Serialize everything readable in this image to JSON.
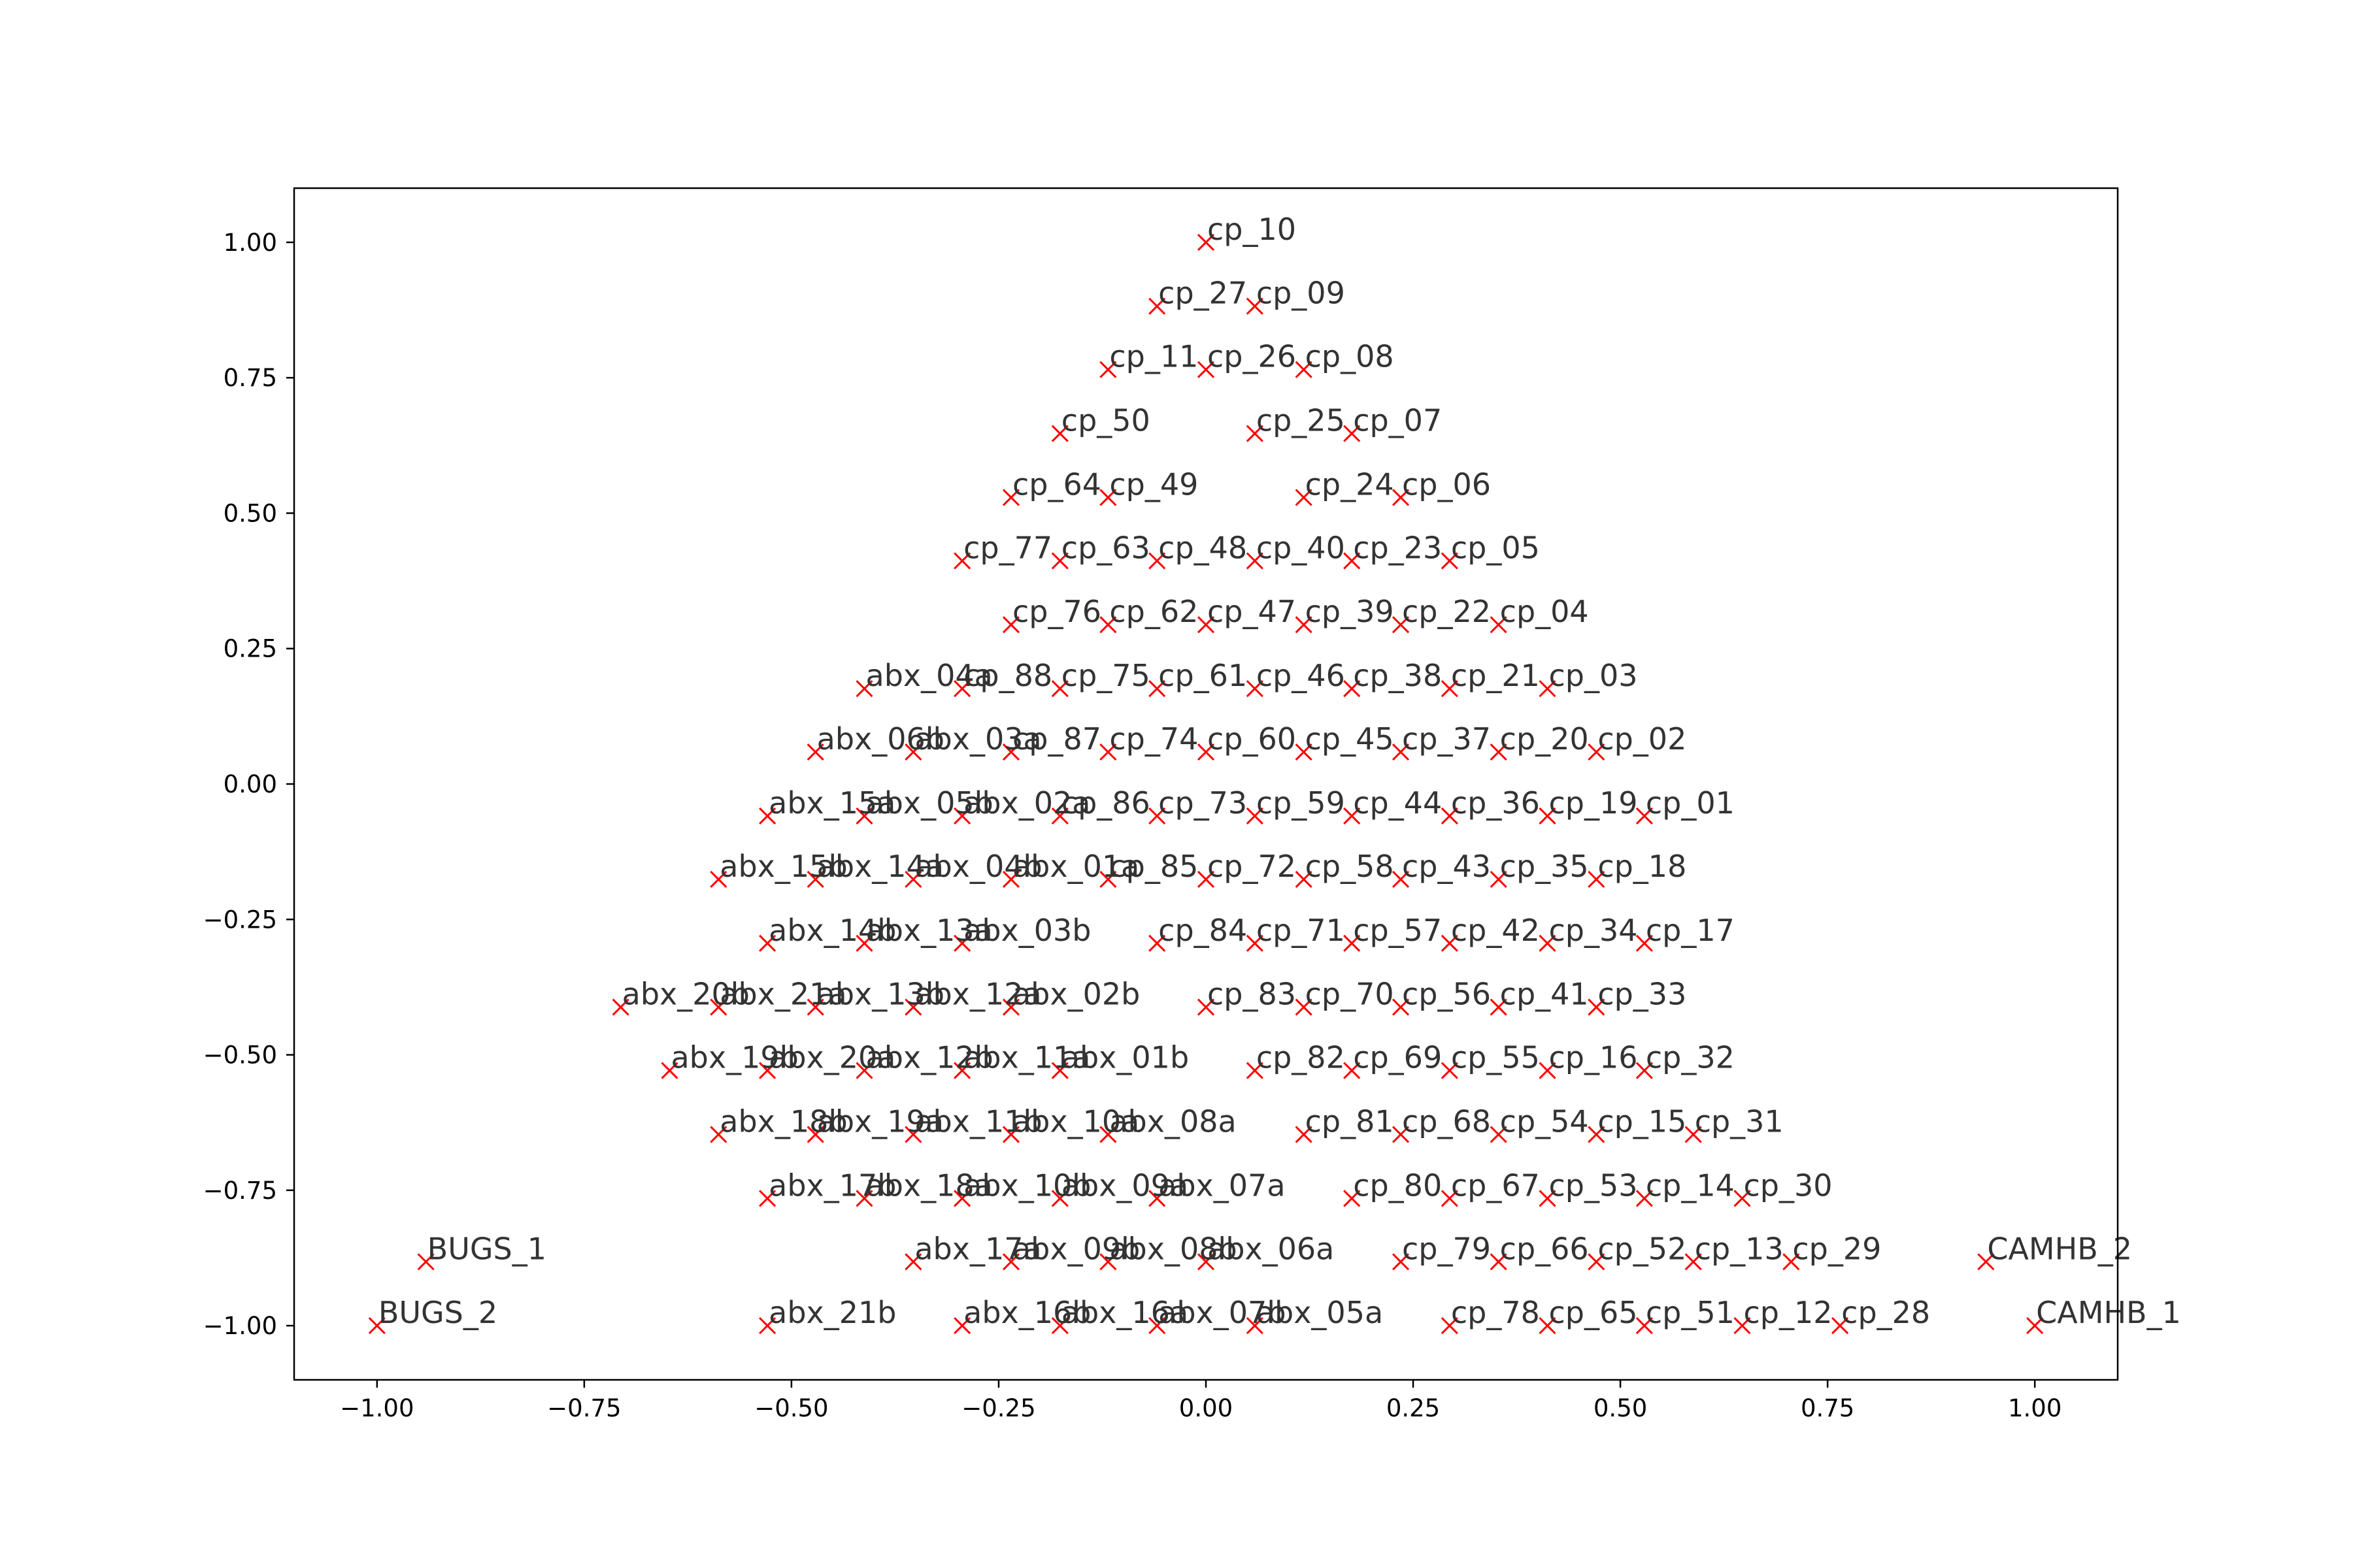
{
  "chart_data": {
    "type": "scatter",
    "title": "",
    "xlabel": "",
    "ylabel": "",
    "xlim": [
      -1.1,
      1.1
    ],
    "ylim": [
      -1.1,
      1.1
    ],
    "xticks": [
      -1.0,
      -0.75,
      -0.5,
      -0.25,
      0.0,
      0.25,
      0.5,
      0.75,
      1.0
    ],
    "yticks": [
      1.0,
      0.75,
      0.5,
      0.25,
      0.0,
      -0.25,
      -0.5,
      -0.75,
      -1.0
    ],
    "xtick_labels": [
      "−1.00",
      "−0.75",
      "−0.50",
      "−0.25",
      "0.00",
      "0.25",
      "0.50",
      "0.75",
      "1.00"
    ],
    "ytick_labels": [
      "1.00",
      "0.75",
      "0.50",
      "0.25",
      "0.00",
      "−0.25",
      "−0.50",
      "−0.75",
      "−1.00"
    ],
    "grid": false,
    "legend": false,
    "marker": "x",
    "marker_color": "#ff0000",
    "label_color": "#333333",
    "points": [
      {
        "label": "cp_10",
        "x": 0.0,
        "y": 1.0
      },
      {
        "label": "cp_27",
        "x": -0.059,
        "y": 0.882
      },
      {
        "label": "cp_09",
        "x": 0.059,
        "y": 0.882
      },
      {
        "label": "cp_11",
        "x": -0.118,
        "y": 0.765
      },
      {
        "label": "cp_26",
        "x": 0.0,
        "y": 0.765
      },
      {
        "label": "cp_08",
        "x": 0.118,
        "y": 0.765
      },
      {
        "label": "cp_50",
        "x": -0.176,
        "y": 0.647
      },
      {
        "label": "cp_25",
        "x": 0.059,
        "y": 0.647
      },
      {
        "label": "cp_07",
        "x": 0.176,
        "y": 0.647
      },
      {
        "label": "cp_64",
        "x": -0.235,
        "y": 0.529
      },
      {
        "label": "cp_49",
        "x": -0.118,
        "y": 0.529
      },
      {
        "label": "cp_24",
        "x": 0.118,
        "y": 0.529
      },
      {
        "label": "cp_06",
        "x": 0.235,
        "y": 0.529
      },
      {
        "label": "cp_77",
        "x": -0.294,
        "y": 0.412
      },
      {
        "label": "cp_63",
        "x": -0.176,
        "y": 0.412
      },
      {
        "label": "cp_48",
        "x": -0.059,
        "y": 0.412
      },
      {
        "label": "cp_40",
        "x": 0.059,
        "y": 0.412
      },
      {
        "label": "cp_23",
        "x": 0.176,
        "y": 0.412
      },
      {
        "label": "cp_05",
        "x": 0.294,
        "y": 0.412
      },
      {
        "label": "cp_76",
        "x": -0.235,
        "y": 0.294
      },
      {
        "label": "cp_62",
        "x": -0.118,
        "y": 0.294
      },
      {
        "label": "cp_47",
        "x": 0.0,
        "y": 0.294
      },
      {
        "label": "cp_39",
        "x": 0.118,
        "y": 0.294
      },
      {
        "label": "cp_22",
        "x": 0.235,
        "y": 0.294
      },
      {
        "label": "cp_04",
        "x": 0.353,
        "y": 0.294
      },
      {
        "label": "abx_04a",
        "x": -0.412,
        "y": 0.176
      },
      {
        "label": "cp_88",
        "x": -0.294,
        "y": 0.176
      },
      {
        "label": "cp_75",
        "x": -0.176,
        "y": 0.176
      },
      {
        "label": "cp_61",
        "x": -0.059,
        "y": 0.176
      },
      {
        "label": "cp_46",
        "x": 0.059,
        "y": 0.176
      },
      {
        "label": "cp_38",
        "x": 0.176,
        "y": 0.176
      },
      {
        "label": "cp_21",
        "x": 0.294,
        "y": 0.176
      },
      {
        "label": "cp_03",
        "x": 0.412,
        "y": 0.176
      },
      {
        "label": "abx_06b",
        "x": -0.471,
        "y": 0.059
      },
      {
        "label": "abx_03a",
        "x": -0.353,
        "y": 0.059
      },
      {
        "label": "cp_87",
        "x": -0.235,
        "y": 0.059
      },
      {
        "label": "cp_74",
        "x": -0.118,
        "y": 0.059
      },
      {
        "label": "cp_60",
        "x": 0.0,
        "y": 0.059
      },
      {
        "label": "cp_45",
        "x": 0.118,
        "y": 0.059
      },
      {
        "label": "cp_37",
        "x": 0.235,
        "y": 0.059
      },
      {
        "label": "cp_20",
        "x": 0.353,
        "y": 0.059
      },
      {
        "label": "cp_02",
        "x": 0.471,
        "y": 0.059
      },
      {
        "label": "abx_15a",
        "x": -0.529,
        "y": -0.059
      },
      {
        "label": "abx_05b",
        "x": -0.412,
        "y": -0.059
      },
      {
        "label": "abx_02a",
        "x": -0.294,
        "y": -0.059
      },
      {
        "label": "cp_86",
        "x": -0.176,
        "y": -0.059
      },
      {
        "label": "cp_73",
        "x": -0.059,
        "y": -0.059
      },
      {
        "label": "cp_59",
        "x": 0.059,
        "y": -0.059
      },
      {
        "label": "cp_44",
        "x": 0.176,
        "y": -0.059
      },
      {
        "label": "cp_36",
        "x": 0.294,
        "y": -0.059
      },
      {
        "label": "cp_19",
        "x": 0.412,
        "y": -0.059
      },
      {
        "label": "cp_01",
        "x": 0.529,
        "y": -0.059
      },
      {
        "label": "abx_15b",
        "x": -0.588,
        "y": -0.176
      },
      {
        "label": "abx_14a",
        "x": -0.471,
        "y": -0.176
      },
      {
        "label": "abx_04b",
        "x": -0.353,
        "y": -0.176
      },
      {
        "label": "abx_01a",
        "x": -0.235,
        "y": -0.176
      },
      {
        "label": "cp_85",
        "x": -0.118,
        "y": -0.176
      },
      {
        "label": "cp_72",
        "x": 0.0,
        "y": -0.176
      },
      {
        "label": "cp_58",
        "x": 0.118,
        "y": -0.176
      },
      {
        "label": "cp_43",
        "x": 0.235,
        "y": -0.176
      },
      {
        "label": "cp_35",
        "x": 0.353,
        "y": -0.176
      },
      {
        "label": "cp_18",
        "x": 0.471,
        "y": -0.176
      },
      {
        "label": "abx_14b",
        "x": -0.529,
        "y": -0.294
      },
      {
        "label": "abx_13a",
        "x": -0.412,
        "y": -0.294
      },
      {
        "label": "abx_03b",
        "x": -0.294,
        "y": -0.294
      },
      {
        "label": "cp_84",
        "x": -0.059,
        "y": -0.294
      },
      {
        "label": "cp_71",
        "x": 0.059,
        "y": -0.294
      },
      {
        "label": "cp_57",
        "x": 0.176,
        "y": -0.294
      },
      {
        "label": "cp_42",
        "x": 0.294,
        "y": -0.294
      },
      {
        "label": "cp_34",
        "x": 0.412,
        "y": -0.294
      },
      {
        "label": "cp_17",
        "x": 0.529,
        "y": -0.294
      },
      {
        "label": "abx_20b",
        "x": -0.706,
        "y": -0.412
      },
      {
        "label": "abx_21a",
        "x": -0.588,
        "y": -0.412
      },
      {
        "label": "abx_13b",
        "x": -0.471,
        "y": -0.412
      },
      {
        "label": "abx_12a",
        "x": -0.353,
        "y": -0.412
      },
      {
        "label": "abx_02b",
        "x": -0.235,
        "y": -0.412
      },
      {
        "label": "cp_83",
        "x": 0.0,
        "y": -0.412
      },
      {
        "label": "cp_70",
        "x": 0.118,
        "y": -0.412
      },
      {
        "label": "cp_56",
        "x": 0.235,
        "y": -0.412
      },
      {
        "label": "cp_41",
        "x": 0.353,
        "y": -0.412
      },
      {
        "label": "cp_33",
        "x": 0.471,
        "y": -0.412
      },
      {
        "label": "abx_19b",
        "x": -0.647,
        "y": -0.529
      },
      {
        "label": "abx_20a",
        "x": -0.529,
        "y": -0.529
      },
      {
        "label": "abx_12b",
        "x": -0.412,
        "y": -0.529
      },
      {
        "label": "abx_11a",
        "x": -0.294,
        "y": -0.529
      },
      {
        "label": "abx_01b",
        "x": -0.176,
        "y": -0.529
      },
      {
        "label": "cp_82",
        "x": 0.059,
        "y": -0.529
      },
      {
        "label": "cp_69",
        "x": 0.176,
        "y": -0.529
      },
      {
        "label": "cp_55",
        "x": 0.294,
        "y": -0.529
      },
      {
        "label": "cp_16",
        "x": 0.412,
        "y": -0.529
      },
      {
        "label": "cp_32",
        "x": 0.529,
        "y": -0.529
      },
      {
        "label": "abx_18b",
        "x": -0.588,
        "y": -0.647
      },
      {
        "label": "abx_19a",
        "x": -0.471,
        "y": -0.647
      },
      {
        "label": "abx_11b",
        "x": -0.353,
        "y": -0.647
      },
      {
        "label": "abx_10a",
        "x": -0.235,
        "y": -0.647
      },
      {
        "label": "abx_08a",
        "x": -0.118,
        "y": -0.647
      },
      {
        "label": "cp_81",
        "x": 0.118,
        "y": -0.647
      },
      {
        "label": "cp_68",
        "x": 0.235,
        "y": -0.647
      },
      {
        "label": "cp_54",
        "x": 0.353,
        "y": -0.647
      },
      {
        "label": "cp_15",
        "x": 0.471,
        "y": -0.647
      },
      {
        "label": "cp_31",
        "x": 0.588,
        "y": -0.647
      },
      {
        "label": "abx_17b",
        "x": -0.529,
        "y": -0.765
      },
      {
        "label": "abx_18a",
        "x": -0.412,
        "y": -0.765
      },
      {
        "label": "abx_10b",
        "x": -0.294,
        "y": -0.765
      },
      {
        "label": "abx_09a",
        "x": -0.176,
        "y": -0.765
      },
      {
        "label": "abx_07a",
        "x": -0.059,
        "y": -0.765
      },
      {
        "label": "cp_80",
        "x": 0.176,
        "y": -0.765
      },
      {
        "label": "cp_67",
        "x": 0.294,
        "y": -0.765
      },
      {
        "label": "cp_53",
        "x": 0.412,
        "y": -0.765
      },
      {
        "label": "cp_14",
        "x": 0.529,
        "y": -0.765
      },
      {
        "label": "cp_30",
        "x": 0.647,
        "y": -0.765
      },
      {
        "label": "BUGS_1",
        "x": -0.941,
        "y": -0.882
      },
      {
        "label": "abx_17a",
        "x": -0.353,
        "y": -0.882
      },
      {
        "label": "abx_09b",
        "x": -0.235,
        "y": -0.882
      },
      {
        "label": "abx_08b",
        "x": -0.118,
        "y": -0.882
      },
      {
        "label": "abx_06a",
        "x": 0.0,
        "y": -0.882
      },
      {
        "label": "cp_79",
        "x": 0.235,
        "y": -0.882
      },
      {
        "label": "cp_66",
        "x": 0.353,
        "y": -0.882
      },
      {
        "label": "cp_52",
        "x": 0.471,
        "y": -0.882
      },
      {
        "label": "cp_13",
        "x": 0.588,
        "y": -0.882
      },
      {
        "label": "cp_29",
        "x": 0.706,
        "y": -0.882
      },
      {
        "label": "CAMHB_2",
        "x": 0.941,
        "y": -0.882
      },
      {
        "label": "BUGS_2",
        "x": -1.0,
        "y": -1.0
      },
      {
        "label": "abx_21b",
        "x": -0.529,
        "y": -1.0
      },
      {
        "label": "abx_16b",
        "x": -0.294,
        "y": -1.0
      },
      {
        "label": "abx_16a",
        "x": -0.176,
        "y": -1.0
      },
      {
        "label": "abx_07b",
        "x": -0.059,
        "y": -1.0
      },
      {
        "label": "abx_05a",
        "x": 0.059,
        "y": -1.0
      },
      {
        "label": "cp_78",
        "x": 0.294,
        "y": -1.0
      },
      {
        "label": "cp_65",
        "x": 0.412,
        "y": -1.0
      },
      {
        "label": "cp_51",
        "x": 0.529,
        "y": -1.0
      },
      {
        "label": "cp_12",
        "x": 0.647,
        "y": -1.0
      },
      {
        "label": "cp_28",
        "x": 0.765,
        "y": -1.0
      },
      {
        "label": "CAMHB_1",
        "x": 1.0,
        "y": -1.0
      }
    ]
  }
}
